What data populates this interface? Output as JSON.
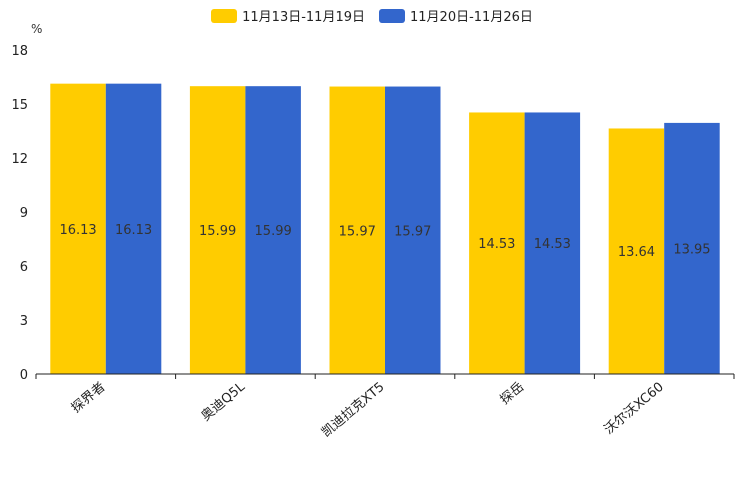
{
  "chart_data": {
    "type": "bar",
    "ylabel": "%",
    "ylim": [
      0,
      18
    ],
    "yticks": [
      0,
      3,
      6,
      9,
      12,
      15,
      18
    ],
    "categories": [
      "探界者",
      "奥迪Q5L",
      "凯迪拉克XT5",
      "探岳",
      "沃尔沃XC60"
    ],
    "series": [
      {
        "name": "11月13日-11月19日",
        "color": "#FFCC00",
        "values": [
          16.13,
          15.99,
          15.97,
          14.53,
          13.64
        ]
      },
      {
        "name": "11月20日-11月26日",
        "color": "#3366CC",
        "values": [
          16.13,
          15.99,
          15.97,
          14.53,
          13.95
        ]
      }
    ]
  }
}
